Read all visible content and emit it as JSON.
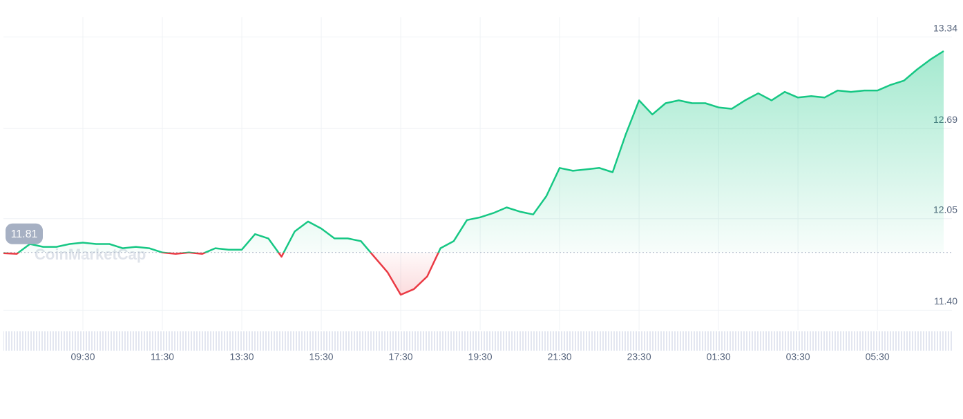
{
  "chart_data": {
    "type": "line",
    "watermark": "CoinMarketCap",
    "categories": [
      null,
      null,
      null,
      null,
      null,
      null,
      "09:30",
      null,
      null,
      null,
      null,
      null,
      "11:30",
      null,
      null,
      null,
      null,
      null,
      "13:30",
      null,
      null,
      null,
      null,
      null,
      "15:30",
      null,
      null,
      null,
      null,
      null,
      "17:30",
      null,
      null,
      null,
      null,
      null,
      "19:30",
      null,
      null,
      null,
      null,
      null,
      "21:30",
      null,
      null,
      null,
      null,
      null,
      "23:30",
      null,
      null,
      null,
      null,
      null,
      "01:30",
      null,
      null,
      null,
      null,
      null,
      "03:30",
      null,
      null,
      null,
      null,
      null,
      "05:30",
      null,
      null,
      null,
      null,
      null
    ],
    "series": [
      {
        "color": "#16c784",
        "values": [
          11.805,
          11.8,
          11.87,
          11.85,
          11.85,
          11.87,
          11.88,
          11.87,
          11.87,
          11.84,
          11.85,
          11.84,
          11.81,
          11.8,
          11.81,
          11.8,
          11.84,
          11.83,
          11.83,
          11.94,
          11.91,
          11.78,
          11.96,
          12.03,
          11.98,
          11.91,
          11.91,
          11.89,
          11.78,
          11.67,
          11.51,
          11.55,
          11.64,
          11.84,
          11.89,
          12.04,
          12.06,
          12.09,
          12.13,
          12.1,
          12.08,
          12.21,
          12.41,
          12.39,
          12.4,
          12.41,
          12.38,
          12.65,
          12.89,
          12.79,
          12.87,
          12.89,
          12.87,
          12.87,
          12.84,
          12.83,
          12.89,
          12.94,
          12.89,
          12.95,
          12.91,
          12.92,
          12.91,
          12.96,
          12.95,
          12.96,
          12.96,
          13.0,
          13.03,
          13.11,
          13.18,
          13.24
        ]
      }
    ],
    "down_color": "#ea3943",
    "baseline": 11.81,
    "ylim": [
      11.26,
      13.48
    ],
    "yticks": [
      {
        "value": 11.4,
        "label": "11.40"
      },
      12.05,
      12.69,
      13.34
    ],
    "grid": true
  }
}
